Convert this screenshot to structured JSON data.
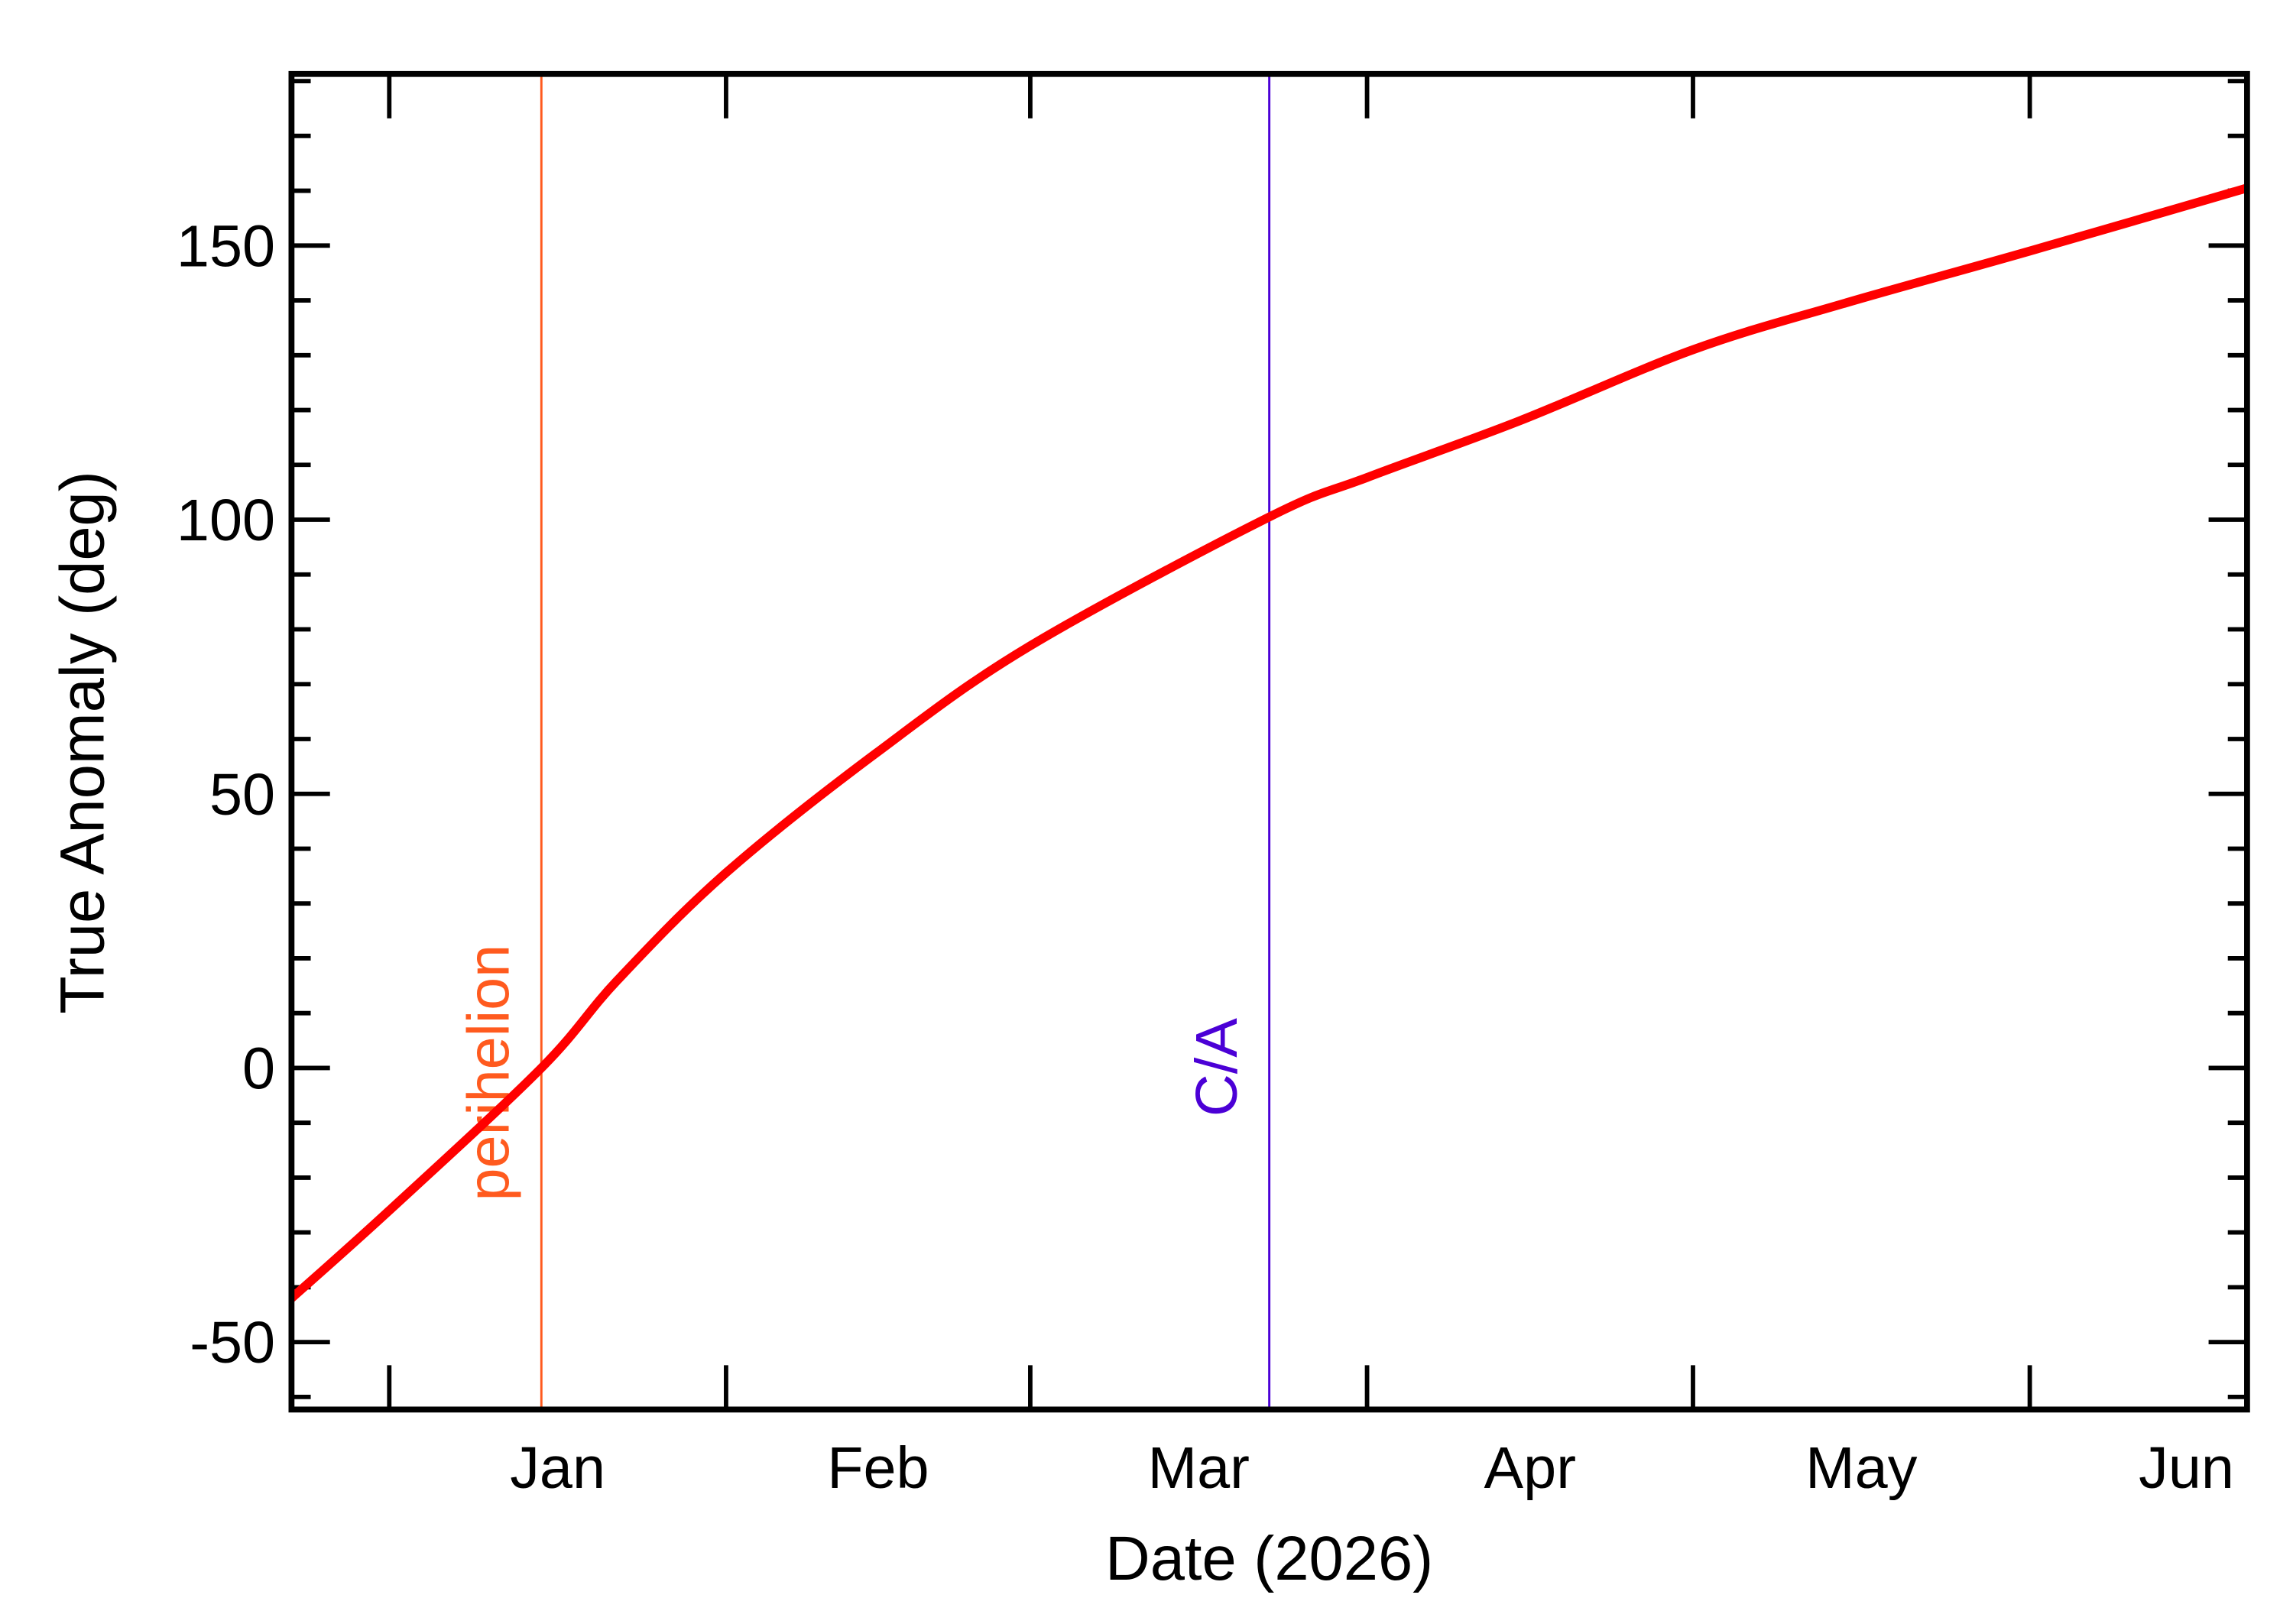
{
  "chart_data": {
    "type": "line",
    "title": "",
    "xlabel": "Date (2026)",
    "ylabel": "True Anomaly (deg)",
    "xlim": [
      "2025-12-23",
      "2026-06-21"
    ],
    "ylim": [
      -62.3,
      181.3
    ],
    "x_tick_labels": [
      {
        "label": "Jan",
        "month_start": "2026-01-01",
        "month_end": "2026-02-01"
      },
      {
        "label": "Feb",
        "month_start": "2026-02-01",
        "month_end": "2026-03-01"
      },
      {
        "label": "Mar",
        "month_start": "2026-03-01",
        "month_end": "2026-04-01"
      },
      {
        "label": "Apr",
        "month_start": "2026-04-01",
        "month_end": "2026-05-01"
      },
      {
        "label": "May",
        "month_start": "2026-05-01",
        "month_end": "2026-06-01"
      },
      {
        "label": "Jun",
        "month_start": "2026-06-01",
        "month_end": "2026-07-01"
      }
    ],
    "y_ticks": [
      -50,
      0,
      50,
      100,
      150
    ],
    "y_minor_step": 10,
    "grid": false,
    "series": [
      {
        "color": "#ff0000",
        "x": [
          "2025-12-23",
          "2026-01-01",
          "2026-01-15",
          "2026-01-22",
          "2026-02-01",
          "2026-02-15",
          "2026-03-01",
          "2026-03-23",
          "2026-04-01",
          "2026-04-15",
          "2026-05-01",
          "2026-05-15",
          "2026-06-01",
          "2026-06-21"
        ],
        "y": [
          -42,
          -26,
          0,
          16,
          35.6,
          57.7,
          77,
          100.5,
          107.7,
          118,
          131,
          139.5,
          149,
          160.5
        ]
      }
    ],
    "annotations": [
      {
        "label": "perihelion",
        "date": "2026-01-15",
        "color": "#ff5a1e"
      },
      {
        "label": "C/A",
        "date": "2026-03-23",
        "color": "#4b00d6"
      }
    ]
  }
}
